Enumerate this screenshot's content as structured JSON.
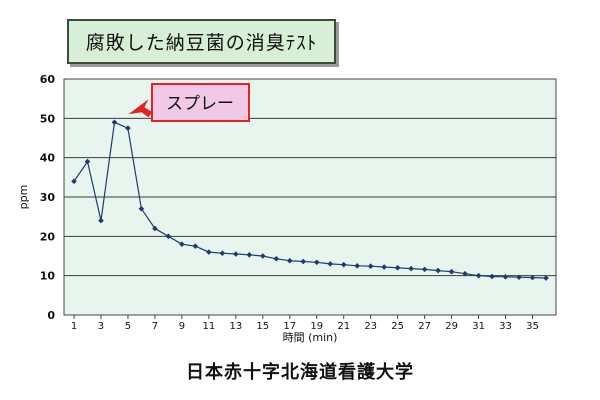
{
  "title": "腐敗した納豆菌の消臭ﾃｽﾄ",
  "footer": "日本赤十字北海道看護大学",
  "colors": {
    "plot_bg": "#e7f5ee",
    "line": "#1f3b6e",
    "annotation_fill": "#f1c9e6",
    "annotation_border": "#e02424",
    "arrow": "#e02424",
    "title_bg": "#d7efd6"
  },
  "chart_data": {
    "type": "line",
    "title": "腐敗した納豆菌の消臭ﾃｽﾄ",
    "xlabel": "時間 (min)",
    "ylabel": "ppm",
    "ylim": [
      0,
      60
    ],
    "yticks": [
      0,
      10,
      20,
      30,
      40,
      50,
      60
    ],
    "xlim": [
      1,
      36
    ],
    "xticks": [
      1,
      3,
      5,
      7,
      9,
      11,
      13,
      15,
      17,
      19,
      21,
      23,
      25,
      27,
      29,
      31,
      33,
      35
    ],
    "grid": true,
    "series": [
      {
        "x": [
          1,
          2,
          3,
          4,
          5,
          6,
          7,
          8,
          9,
          10,
          11,
          12,
          13,
          14,
          15,
          16,
          17,
          18,
          19,
          20,
          21,
          22,
          23,
          24,
          25,
          26,
          27,
          28,
          29,
          30,
          31,
          32,
          33,
          34,
          35,
          36
        ],
        "values": [
          34,
          39,
          24,
          49,
          47.5,
          27,
          22,
          20,
          18,
          17.5,
          16,
          15.7,
          15.5,
          15.3,
          15,
          14.3,
          13.8,
          13.6,
          13.4,
          13,
          12.8,
          12.5,
          12.4,
          12.2,
          12,
          11.8,
          11.6,
          11.3,
          11,
          10.5,
          10,
          9.8,
          9.7,
          9.6,
          9.5,
          9.4
        ]
      }
    ],
    "annotations": [
      {
        "text": "スプレー",
        "x": 4,
        "y": 49
      }
    ]
  }
}
